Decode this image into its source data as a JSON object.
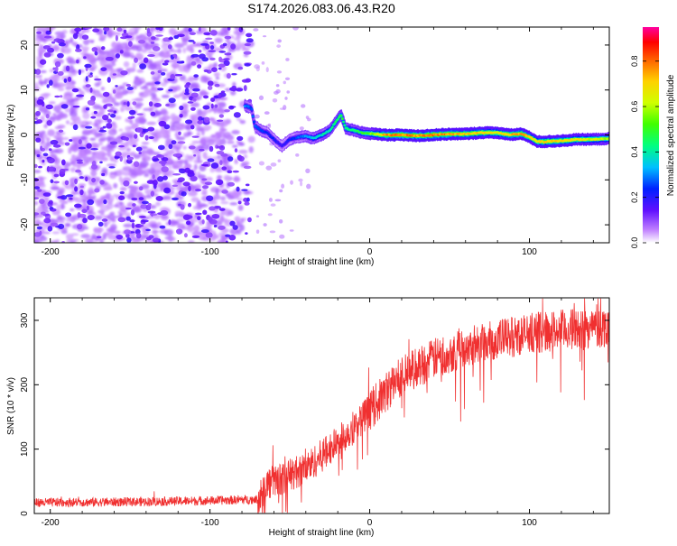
{
  "page_title": "S174.2026.083.06.43.R20",
  "chart_data": [
    {
      "type": "heatmap",
      "id": "spectrogram",
      "xlabel": "Height of straight line (km)",
      "ylabel": "Frequency (Hz)",
      "xlim": [
        -210,
        150
      ],
      "ylim": [
        -24,
        24
      ],
      "x_ticks": [
        -200,
        -100,
        0,
        100
      ],
      "y_ticks": [
        -20,
        -10,
        0,
        10,
        20
      ],
      "x_tick_labels": [
        "-200",
        "-100",
        "0",
        "100"
      ],
      "y_tick_labels": [
        "-20",
        "-10",
        "0",
        "10",
        "20"
      ],
      "colorbar": {
        "label": "Normalized spectral amplitude",
        "range": [
          0,
          0.95
        ],
        "ticks": [
          0.0,
          0.2,
          0.4,
          0.6,
          0.8
        ],
        "tick_labels": [
          "0.0",
          "0.2",
          "0.4",
          "0.6",
          "0.8"
        ]
      },
      "noise_region_x": [
        -210,
        -75
      ],
      "carrier_trace": [
        {
          "x": -78,
          "y": 6.5,
          "amp": 0.35
        },
        {
          "x": -74,
          "y": 6.0,
          "amp": 0.3
        },
        {
          "x": -72,
          "y": 2.0,
          "amp": 0.3
        },
        {
          "x": -68,
          "y": 1.0,
          "amp": 0.3
        },
        {
          "x": -64,
          "y": 0.5,
          "amp": 0.25
        },
        {
          "x": -60,
          "y": -1.0,
          "amp": 0.25
        },
        {
          "x": -55,
          "y": -2.5,
          "amp": 0.2
        },
        {
          "x": -50,
          "y": -1.0,
          "amp": 0.25
        },
        {
          "x": -45,
          "y": -0.5,
          "amp": 0.3
        },
        {
          "x": -40,
          "y": -0.3,
          "amp": 0.35
        },
        {
          "x": -35,
          "y": -0.8,
          "amp": 0.4
        },
        {
          "x": -30,
          "y": 0.0,
          "amp": 0.45
        },
        {
          "x": -25,
          "y": 1.0,
          "amp": 0.45
        },
        {
          "x": -21,
          "y": 3.0,
          "amp": 0.5
        },
        {
          "x": -18,
          "y": 4.5,
          "amp": 0.55
        },
        {
          "x": -15,
          "y": 1.5,
          "amp": 0.5
        },
        {
          "x": -10,
          "y": 1.0,
          "amp": 0.5
        },
        {
          "x": -5,
          "y": 0.5,
          "amp": 0.55
        },
        {
          "x": 0,
          "y": 0.3,
          "amp": 0.6
        },
        {
          "x": 10,
          "y": 0.0,
          "amp": 0.85
        },
        {
          "x": 20,
          "y": 0.0,
          "amp": 0.9
        },
        {
          "x": 30,
          "y": -0.2,
          "amp": 0.85
        },
        {
          "x": 40,
          "y": 0.0,
          "amp": 0.9
        },
        {
          "x": 50,
          "y": 0.2,
          "amp": 0.85
        },
        {
          "x": 60,
          "y": 0.2,
          "amp": 0.8
        },
        {
          "x": 70,
          "y": 0.5,
          "amp": 0.8
        },
        {
          "x": 80,
          "y": 0.5,
          "amp": 0.75
        },
        {
          "x": 88,
          "y": 0.0,
          "amp": 0.8
        },
        {
          "x": 95,
          "y": 0.3,
          "amp": 0.85
        },
        {
          "x": 100,
          "y": -0.5,
          "amp": 0.8
        },
        {
          "x": 105,
          "y": -1.5,
          "amp": 0.75
        },
        {
          "x": 110,
          "y": -1.5,
          "amp": 0.8
        },
        {
          "x": 120,
          "y": -1.3,
          "amp": 0.8
        },
        {
          "x": 130,
          "y": -1.0,
          "amp": 0.75
        },
        {
          "x": 140,
          "y": -1.0,
          "amp": 0.7
        },
        {
          "x": 150,
          "y": -0.8,
          "amp": 0.65
        }
      ]
    },
    {
      "type": "line",
      "id": "snr",
      "xlabel": "Height of straight line (km)",
      "ylabel": "SNR (10 * v/v)",
      "xlim": [
        -210,
        150
      ],
      "ylim": [
        0,
        335
      ],
      "x_ticks": [
        -200,
        -100,
        0,
        100
      ],
      "y_ticks": [
        0,
        100,
        200,
        300
      ],
      "x_tick_labels": [
        "-200",
        "-100",
        "0",
        "100"
      ],
      "y_tick_labels": [
        "0",
        "100",
        "200",
        "300"
      ],
      "line_color": "#f03030",
      "trend": {
        "x": [
          -210,
          -150,
          -100,
          -70,
          -65,
          -50,
          -40,
          -20,
          0,
          20,
          40,
          60,
          80,
          100,
          120,
          150
        ],
        "y": [
          17,
          18,
          20,
          22,
          45,
          60,
          70,
          110,
          160,
          215,
          240,
          260,
          270,
          280,
          285,
          290
        ]
      }
    }
  ]
}
